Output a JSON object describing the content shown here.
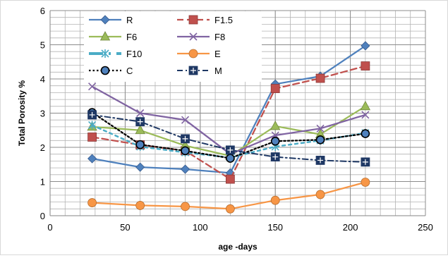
{
  "chart_data": {
    "type": "line",
    "title": "",
    "xlabel": "age -days",
    "ylabel": "Total Porosity %",
    "xlim": [
      0,
      250
    ],
    "ylim": [
      0,
      6
    ],
    "x_ticks": [
      0,
      50,
      100,
      150,
      200,
      250
    ],
    "y_ticks": [
      0,
      1,
      2,
      3,
      4,
      5,
      6
    ],
    "grid": true,
    "legend_position": "top-left, inside plot area, two columns",
    "x": [
      28,
      60,
      90,
      120,
      150,
      180,
      210
    ],
    "series": [
      {
        "name": "R",
        "color": "#4F81BD",
        "dash": "solid",
        "marker": "diamond",
        "values": [
          1.67,
          1.42,
          1.36,
          1.25,
          3.85,
          4.08,
          4.97
        ]
      },
      {
        "name": "F1.5",
        "color": "#C0504D",
        "dash": "dashed",
        "marker": "square",
        "values": [
          2.3,
          2.07,
          1.9,
          1.07,
          3.72,
          4.02,
          4.38
        ]
      },
      {
        "name": "F6",
        "color": "#9BBB59",
        "dash": "solid",
        "marker": "triangle",
        "values": [
          2.6,
          2.5,
          2.05,
          1.75,
          2.62,
          2.38,
          3.2
        ]
      },
      {
        "name": "F8",
        "color": "#8064A2",
        "dash": "solid",
        "marker": "x",
        "values": [
          3.78,
          3.0,
          2.8,
          1.8,
          2.35,
          2.55,
          2.95
        ]
      },
      {
        "name": "F10",
        "color": "#4BACC6",
        "dash": "thick-dotted",
        "marker": "star",
        "values": [
          2.65,
          2.02,
          1.85,
          1.7,
          2.02,
          2.2,
          2.42
        ]
      },
      {
        "name": "E",
        "color": "#F79646",
        "dash": "solid",
        "marker": "circle",
        "values": [
          0.38,
          0.3,
          0.27,
          0.2,
          0.45,
          0.62,
          0.98
        ]
      },
      {
        "name": "C",
        "color": "#000000",
        "dash": "dotted",
        "marker": "circle-filled-blue",
        "values": [
          3.02,
          2.08,
          1.9,
          1.68,
          2.18,
          2.22,
          2.4
        ]
      },
      {
        "name": "M",
        "color": "#1F3864",
        "dash": "dash-dot",
        "marker": "square-plus",
        "values": [
          2.95,
          2.75,
          2.25,
          1.92,
          1.72,
          1.62,
          1.57
        ]
      }
    ]
  }
}
